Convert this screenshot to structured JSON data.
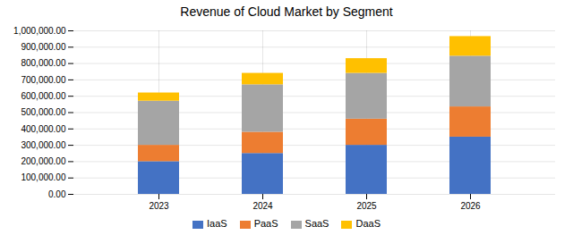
{
  "chart_data": {
    "type": "bar",
    "stacked": true,
    "title": "Revenue of Cloud Market by Segment",
    "categories": [
      "2023",
      "2024",
      "2025",
      "2026"
    ],
    "series": [
      {
        "name": "IaaS",
        "color": "#4472C4",
        "values": [
          200000,
          250000,
          300000,
          350000
        ]
      },
      {
        "name": "PaaS",
        "color": "#ED7D31",
        "values": [
          100000,
          130000,
          160000,
          185000
        ]
      },
      {
        "name": "SaaS",
        "color": "#A5A5A5",
        "values": [
          270000,
          290000,
          280000,
          310000
        ]
      },
      {
        "name": "DaaS",
        "color": "#FFC000",
        "values": [
          50000,
          70000,
          90000,
          120000
        ]
      }
    ],
    "ylim": [
      0,
      1000000
    ],
    "yticks": [
      {
        "value": 0,
        "label": "0.00"
      },
      {
        "value": 100000,
        "label": "100,000.00"
      },
      {
        "value": 200000,
        "label": "200,000.00"
      },
      {
        "value": 300000,
        "label": "300,000.00"
      },
      {
        "value": 400000,
        "label": "400,000.00"
      },
      {
        "value": 500000,
        "label": "500,000.00"
      },
      {
        "value": 600000,
        "label": "600,000.00"
      },
      {
        "value": 700000,
        "label": "700,000.00"
      },
      {
        "value": 800000,
        "label": "800,000.00"
      },
      {
        "value": 900000,
        "label": "900,000.00"
      },
      {
        "value": 1000000,
        "label": "1,000,000.00"
      }
    ],
    "grid": true,
    "legend": "bottom"
  }
}
